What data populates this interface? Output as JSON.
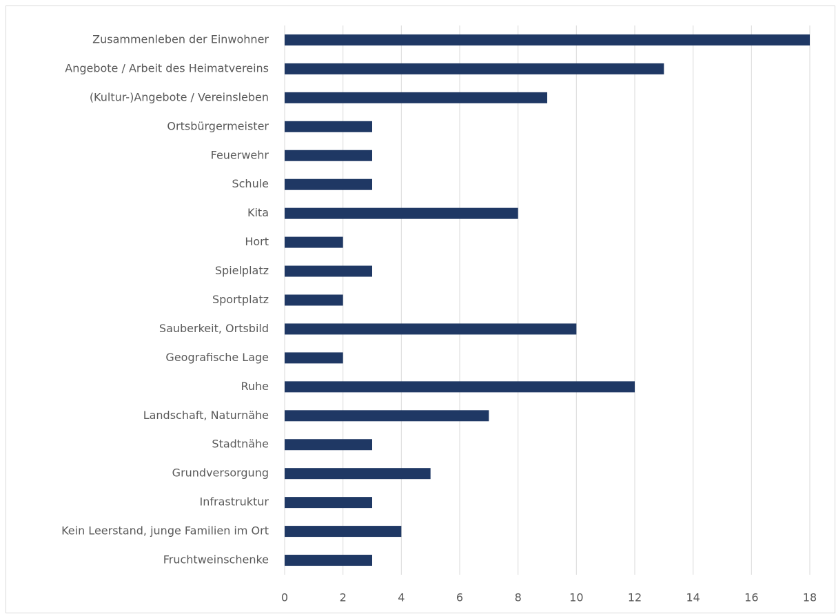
{
  "chart_data": {
    "type": "bar",
    "orientation": "horizontal",
    "categories": [
      "Zusammenleben der Einwohner",
      "Angebote / Arbeit des Heimatvereins",
      "(Kultur-)Angebote / Vereinsleben",
      "Ortsbürgermeister",
      "Feuerwehr",
      "Schule",
      "Kita",
      "Hort",
      "Spielplatz",
      "Sportplatz",
      "Sauberkeit, Ortsbild",
      "Geografische Lage",
      "Ruhe",
      "Landschaft, Naturnähe",
      "Stadtnähe",
      "Grundversorgung",
      "Infrastruktur",
      "Kein Leerstand, junge Familien im Ort",
      "Fruchtweinschenke"
    ],
    "values": [
      18,
      13,
      9,
      3,
      3,
      3,
      8,
      2,
      3,
      2,
      10,
      2,
      12,
      7,
      3,
      5,
      3,
      4,
      3
    ],
    "color": "#1f3864",
    "xlim": [
      0,
      18
    ],
    "xticks": [
      0,
      2,
      4,
      6,
      8,
      10,
      12,
      14,
      16,
      18
    ],
    "grid": true
  }
}
